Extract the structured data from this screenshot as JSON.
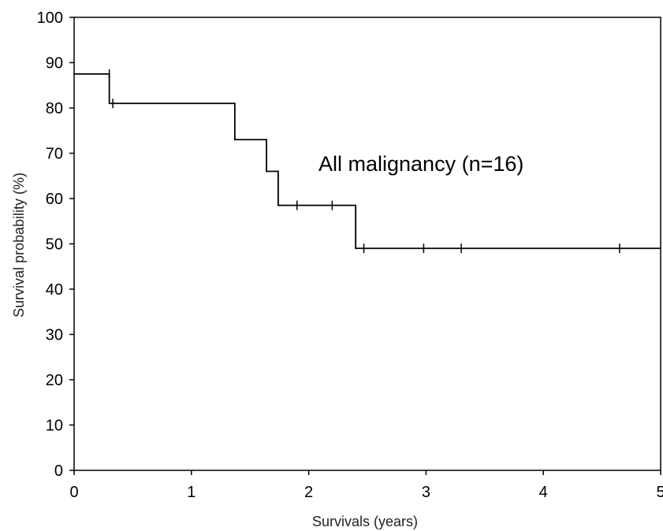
{
  "chart_data": {
    "type": "line",
    "title": "",
    "xlabel": "Survivals (years)",
    "ylabel": "Survival probability (%)",
    "xlim": [
      0,
      5
    ],
    "ylim": [
      0,
      100
    ],
    "x_ticks": [
      0,
      1,
      2,
      3,
      4,
      5
    ],
    "y_ticks": [
      0,
      10,
      20,
      30,
      40,
      50,
      60,
      70,
      80,
      90,
      100
    ],
    "grid": false,
    "legend": "none",
    "annotation": "All malignancy (n=16)",
    "series": [
      {
        "step": "post",
        "color": "#000000",
        "points": [
          {
            "x": 0,
            "y": 87.5
          },
          {
            "x": 0.3,
            "y": 81
          },
          {
            "x": 1.37,
            "y": 73
          },
          {
            "x": 1.64,
            "y": 66
          },
          {
            "x": 1.74,
            "y": 58.5
          },
          {
            "x": 2.4,
            "y": 49
          },
          {
            "x": 5.0,
            "y": 49
          }
        ],
        "censored": [
          {
            "x": 0.3,
            "y": 87.5
          },
          {
            "x": 0.33,
            "y": 81
          },
          {
            "x": 1.9,
            "y": 58.5
          },
          {
            "x": 2.2,
            "y": 58.5
          },
          {
            "x": 2.47,
            "y": 49
          },
          {
            "x": 2.98,
            "y": 49
          },
          {
            "x": 3.3,
            "y": 49
          },
          {
            "x": 4.65,
            "y": 49
          }
        ]
      }
    ]
  }
}
